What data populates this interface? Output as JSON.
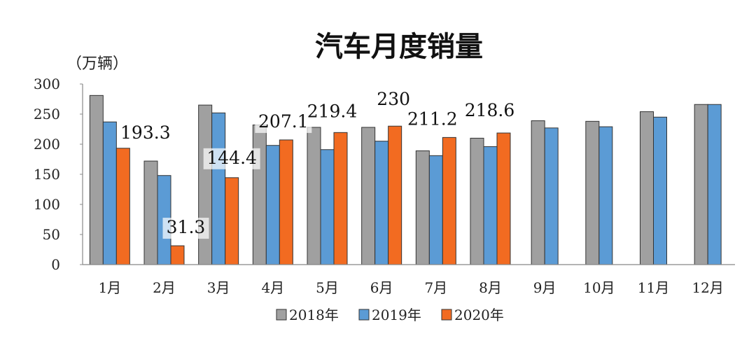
{
  "chart_data": {
    "type": "bar",
    "title": "汽车月度销量",
    "ylabel": "（万辆）",
    "xlabel": "",
    "ylim": [
      0,
      300
    ],
    "yticks": [
      0,
      50,
      100,
      150,
      200,
      250,
      300
    ],
    "categories": [
      "1月",
      "2月",
      "3月",
      "4月",
      "5月",
      "6月",
      "7月",
      "8月",
      "9月",
      "10月",
      "11月",
      "12月"
    ],
    "series": [
      {
        "name": "2018年",
        "color": "#a0a0a0",
        "values": [
          281,
          172,
          265,
          232,
          228,
          228,
          189,
          210,
          239,
          238,
          254,
          266
        ]
      },
      {
        "name": "2019年",
        "color": "#5b9bd5",
        "values": [
          237,
          148,
          252,
          198,
          191,
          205,
          181,
          196,
          227,
          229,
          245,
          266
        ]
      },
      {
        "name": "2020年",
        "color": "#f26b21",
        "values": [
          193.3,
          31.3,
          144.4,
          207.1,
          219.4,
          230,
          211.2,
          218.6,
          null,
          null,
          null,
          null
        ]
      }
    ],
    "data_labels": [
      {
        "category": "1月",
        "series": "2020年",
        "text": "193.3"
      },
      {
        "category": "2月",
        "series": "2020年",
        "text": "31.3"
      },
      {
        "category": "3月",
        "series": "2020年",
        "text": "144.4"
      },
      {
        "category": "4月",
        "series": "2020年",
        "text": "207.1"
      },
      {
        "category": "5月",
        "series": "2020年",
        "text": "219.4"
      },
      {
        "category": "6月",
        "series": "2020年",
        "text": "230"
      },
      {
        "category": "7月",
        "series": "2020年",
        "text": "211.2"
      },
      {
        "category": "8月",
        "series": "2020年",
        "text": "218.6"
      }
    ],
    "legend": "bottom"
  }
}
